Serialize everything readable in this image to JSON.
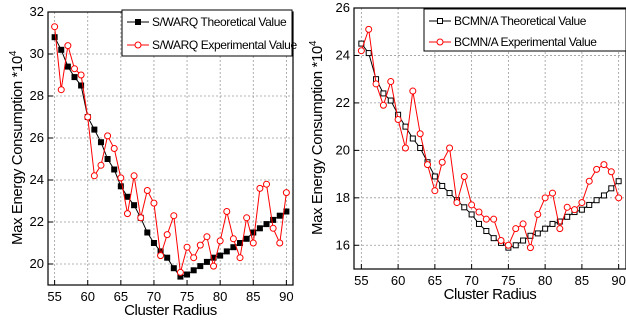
{
  "chart_data": [
    {
      "type": "line",
      "title": "",
      "xlabel": "Cluster Radius",
      "ylabel": "Max Energy Consumption *10",
      "ylabel_exponent": "4",
      "xlim": [
        54,
        91
      ],
      "ylim": [
        19,
        32
      ],
      "xticks": [
        55,
        60,
        65,
        70,
        75,
        80,
        85,
        90
      ],
      "yticks": [
        20,
        22,
        24,
        26,
        28,
        30,
        32
      ],
      "grid": true,
      "legend_position": "top-right",
      "x": [
        55,
        56,
        57,
        58,
        59,
        60,
        61,
        62,
        63,
        64,
        65,
        66,
        67,
        68,
        69,
        70,
        71,
        72,
        73,
        74,
        75,
        76,
        77,
        78,
        79,
        80,
        81,
        82,
        83,
        84,
        85,
        86,
        87,
        88,
        89,
        90
      ],
      "series": [
        {
          "name": "S/WARQ Theoretical Value",
          "color": "#000000",
          "marker": "square",
          "values": [
            30.8,
            30.2,
            29.4,
            28.9,
            28.5,
            27.0,
            26.4,
            25.8,
            25.0,
            24.5,
            23.7,
            23.2,
            22.8,
            22.2,
            21.5,
            21.0,
            20.6,
            20.3,
            19.8,
            19.4,
            19.5,
            19.7,
            19.9,
            20.1,
            20.3,
            20.4,
            20.6,
            20.8,
            21.0,
            21.2,
            21.5,
            21.7,
            21.9,
            22.1,
            22.3,
            22.5
          ]
        },
        {
          "name": "S/WARQ Experimental Value",
          "color": "#ff0000",
          "marker": "circle",
          "values": [
            31.3,
            28.3,
            30.4,
            29.3,
            29.0,
            27.0,
            24.2,
            24.7,
            26.1,
            25.5,
            24.1,
            22.4,
            24.2,
            22.2,
            23.5,
            22.9,
            20.4,
            21.4,
            22.3,
            19.6,
            20.8,
            20.3,
            20.9,
            21.3,
            19.9,
            21.1,
            22.5,
            21.2,
            20.3,
            22.2,
            21.0,
            23.6,
            23.8,
            21.7,
            21.0,
            23.4
          ]
        }
      ]
    },
    {
      "type": "line",
      "title": "",
      "xlabel": "Cluster Radius",
      "ylabel": "Max Energy Consumption *10",
      "ylabel_exponent": "4",
      "xlim": [
        54,
        91
      ],
      "ylim": [
        15,
        26
      ],
      "xticks": [
        55,
        60,
        65,
        70,
        75,
        80,
        85,
        90
      ],
      "yticks": [
        16,
        18,
        20,
        22,
        24,
        26
      ],
      "grid": true,
      "legend_position": "top-right",
      "x": [
        55,
        56,
        57,
        58,
        59,
        60,
        61,
        62,
        63,
        64,
        65,
        66,
        67,
        68,
        69,
        70,
        71,
        72,
        73,
        74,
        75,
        76,
        77,
        78,
        79,
        80,
        81,
        82,
        83,
        84,
        85,
        86,
        87,
        88,
        89,
        90
      ],
      "series": [
        {
          "name": "BCMN/A Theoretical Value",
          "color": "#000000",
          "marker": "square",
          "values": [
            24.5,
            24.1,
            23.0,
            22.4,
            22.1,
            21.5,
            21.0,
            20.5,
            20.1,
            19.5,
            18.9,
            18.5,
            18.2,
            17.9,
            17.6,
            17.3,
            16.9,
            16.6,
            16.3,
            16.1,
            15.9,
            16.0,
            16.2,
            16.4,
            16.5,
            16.7,
            16.9,
            17.0,
            17.2,
            17.4,
            17.5,
            17.7,
            17.9,
            18.1,
            18.4,
            18.7
          ]
        },
        {
          "name": "BCMN/A Experimental Value",
          "color": "#ff0000",
          "marker": "circle",
          "values": [
            24.2,
            25.1,
            22.8,
            21.9,
            22.9,
            21.3,
            20.1,
            22.5,
            20.7,
            19.4,
            18.3,
            19.5,
            20.1,
            17.8,
            18.9,
            17.7,
            17.4,
            17.1,
            17.1,
            16.2,
            16.0,
            16.7,
            16.9,
            15.9,
            17.3,
            18.0,
            18.2,
            16.7,
            17.6,
            17.5,
            17.8,
            18.7,
            19.2,
            19.4,
            19.1,
            18.0
          ]
        }
      ]
    }
  ]
}
